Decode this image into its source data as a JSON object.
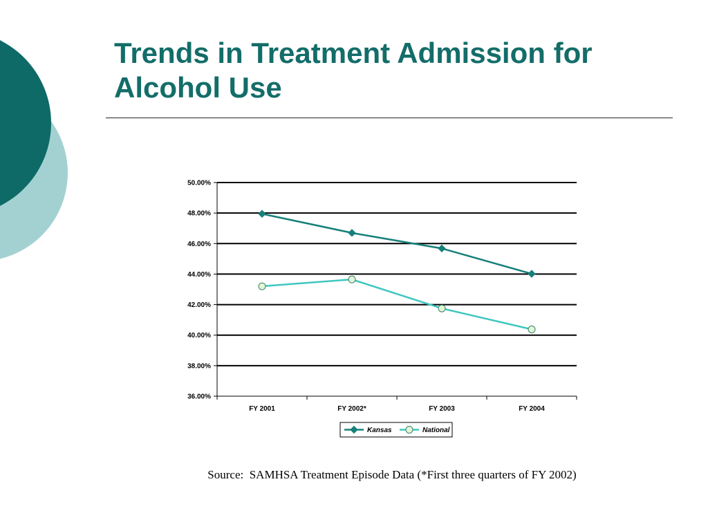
{
  "slide": {
    "title": "Trends in Treatment Admission for Alcohol Use",
    "source": "Source:  SAMHSA Treatment Episode Data (*First three quarters of FY 2002)"
  },
  "colors": {
    "title": "#136d69",
    "kansas": "#17807a",
    "national": "#3fc6bf",
    "deco_dark": "#0e6a66",
    "deco_light": "#a3d1d2"
  },
  "chart_data": {
    "type": "line",
    "title": "",
    "xlabel": "",
    "ylabel": "",
    "categories": [
      "FY 2001",
      "FY 2002*",
      "FY 2003",
      "FY 2004"
    ],
    "series": [
      {
        "name": "Kansas",
        "values": [
          47.95,
          46.7,
          45.68,
          44.02
        ],
        "marker": "diamond",
        "color": "#17807a"
      },
      {
        "name": "National",
        "values": [
          43.2,
          43.65,
          41.75,
          40.38
        ],
        "marker": "circle",
        "color": "#3fc6bf"
      }
    ],
    "ylim": [
      36,
      50
    ],
    "ytick_labels": [
      "36.00%",
      "38.00%",
      "40.00%",
      "42.00%",
      "44.00%",
      "46.00%",
      "48.00%",
      "50.00%"
    ],
    "grid": true,
    "legend": "bottom-center"
  }
}
